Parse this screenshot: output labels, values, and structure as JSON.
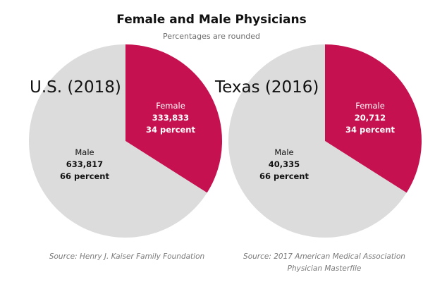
{
  "title": "Female and Male Physicians",
  "subtitle": "Percentages are rounded",
  "colors": {
    "female": "#c5114f",
    "male": "#dcdcdc",
    "female_text": "#ffffff",
    "male_text": "#111111"
  },
  "chart_data": [
    {
      "type": "pie",
      "title": "U.S. (2018)",
      "source": "Source: Henry J. Kaiser Family Foundation",
      "slices": [
        {
          "label": "Female",
          "count": "333,833",
          "percent_text": "34 percent",
          "value": 34
        },
        {
          "label": "Male",
          "count": "633,817",
          "percent_text": "66 percent",
          "value": 66
        }
      ]
    },
    {
      "type": "pie",
      "title": "Texas (2016)",
      "source": "Source: 2017 American Medical Association Physician Masterfile",
      "slices": [
        {
          "label": "Female",
          "count": "20,712",
          "percent_text": "34 percent",
          "value": 34
        },
        {
          "label": "Male",
          "count": "40,335",
          "percent_text": "66 percent",
          "value": 66
        }
      ]
    }
  ]
}
